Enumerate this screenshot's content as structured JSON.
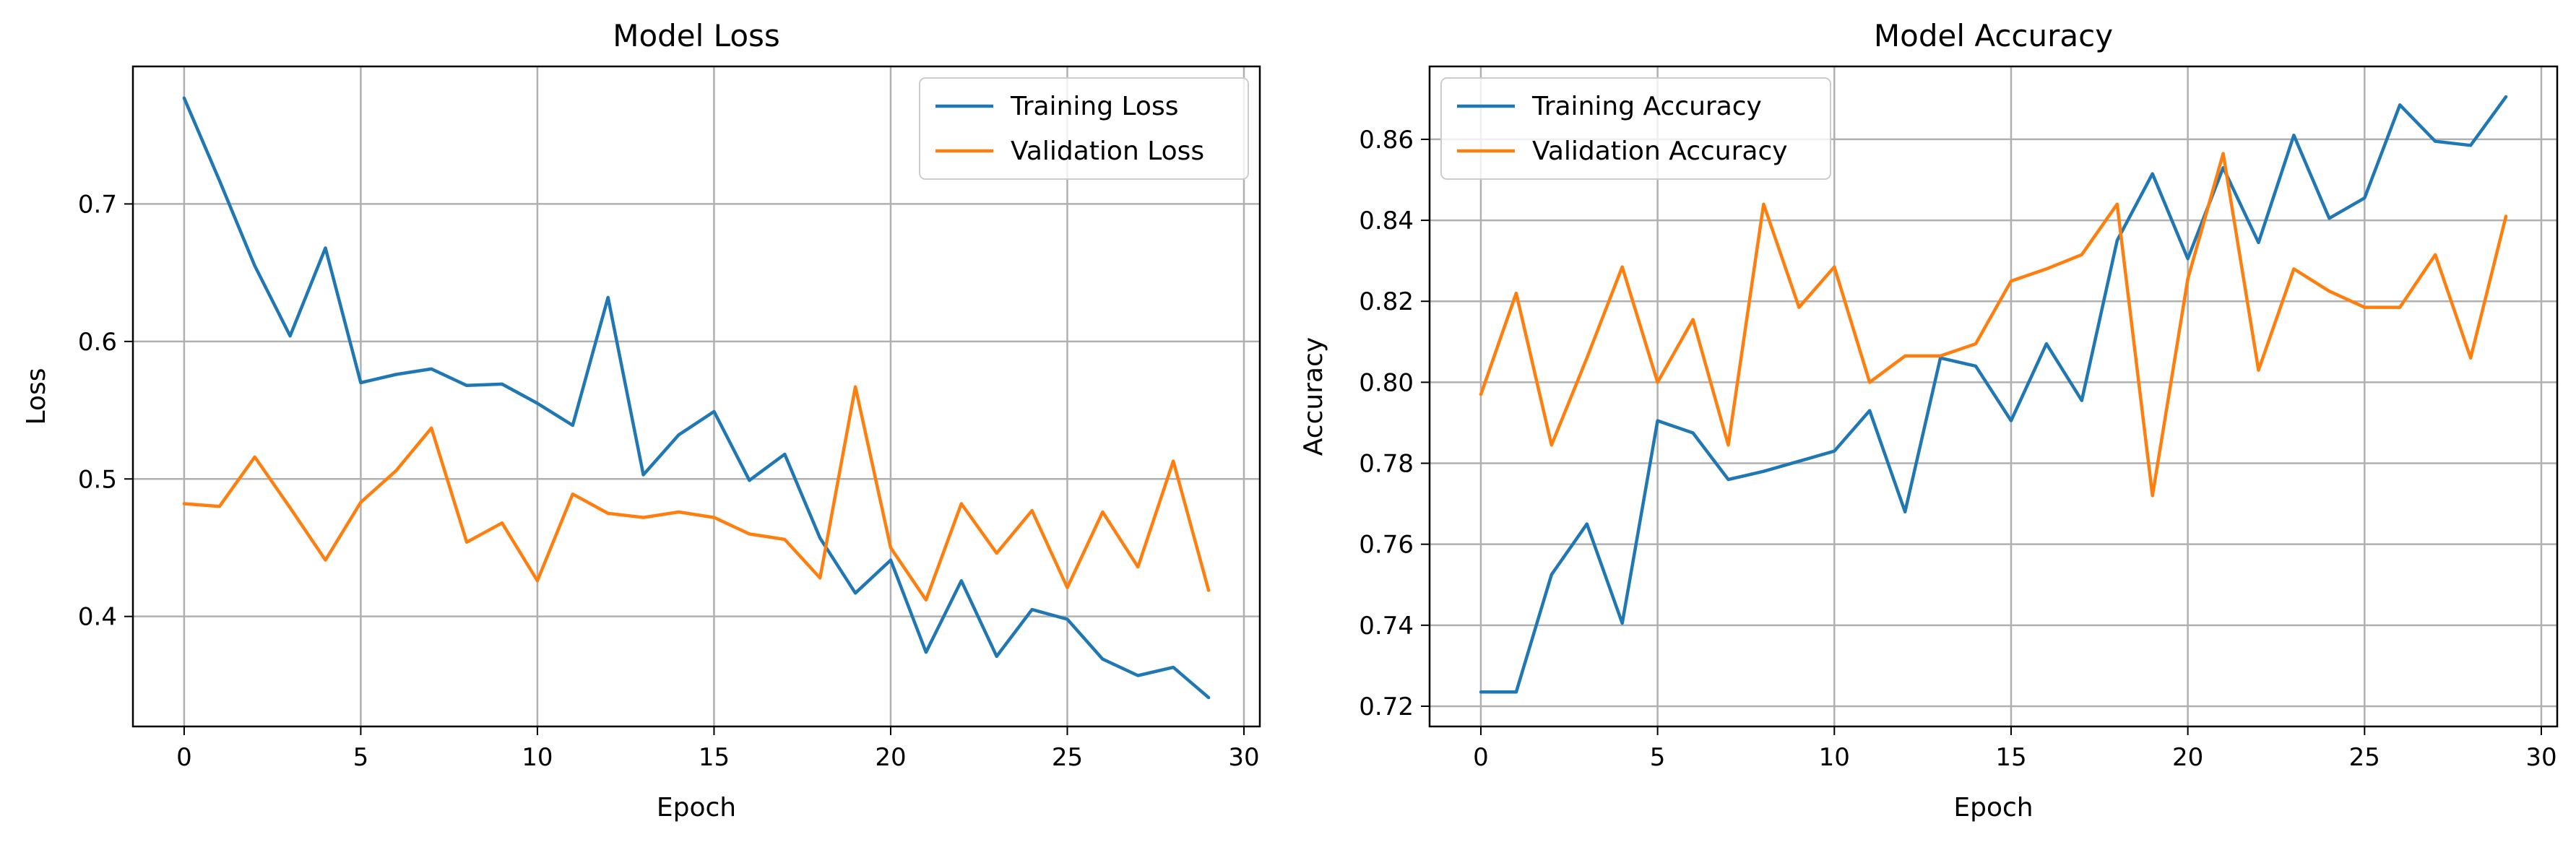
{
  "chart_data": [
    {
      "type": "line",
      "title": "Model Loss",
      "xlabel": "Epoch",
      "ylabel": "Loss",
      "xlim": [
        -1.45,
        30.45
      ],
      "ylim": [
        0.32,
        0.8
      ],
      "xticks": [
        0,
        5,
        10,
        15,
        20,
        25,
        30
      ],
      "yticks": [
        0.4,
        0.5,
        0.6,
        0.7
      ],
      "ytick_labels": [
        "0.4",
        "0.5",
        "0.6",
        "0.7"
      ],
      "grid": true,
      "legend_position": "top-right",
      "x": [
        0,
        1,
        2,
        3,
        4,
        5,
        6,
        7,
        8,
        9,
        10,
        11,
        12,
        13,
        14,
        15,
        16,
        17,
        18,
        19,
        20,
        21,
        22,
        23,
        24,
        25,
        26,
        27,
        28,
        29
      ],
      "series": [
        {
          "name": "Training Loss",
          "color": "#1f77b4",
          "values": [
            0.777,
            0.717,
            0.655,
            0.604,
            0.668,
            0.57,
            0.576,
            0.58,
            0.568,
            0.569,
            0.555,
            0.539,
            0.632,
            0.503,
            0.532,
            0.549,
            0.499,
            0.518,
            0.457,
            0.417,
            0.441,
            0.374,
            0.426,
            0.371,
            0.405,
            0.398,
            0.369,
            0.357,
            0.363,
            0.341
          ]
        },
        {
          "name": "Validation Loss",
          "color": "#ff7f0e",
          "values": [
            0.482,
            0.48,
            0.516,
            0.479,
            0.441,
            0.483,
            0.506,
            0.537,
            0.454,
            0.468,
            0.426,
            0.489,
            0.475,
            0.472,
            0.476,
            0.472,
            0.46,
            0.456,
            0.428,
            0.567,
            0.45,
            0.412,
            0.482,
            0.446,
            0.477,
            0.421,
            0.476,
            0.436,
            0.513,
            0.419
          ]
        }
      ]
    },
    {
      "type": "line",
      "title": "Model Accuracy",
      "xlabel": "Epoch",
      "ylabel": "Accuracy",
      "xlim": [
        -1.45,
        30.45
      ],
      "ylim": [
        0.715,
        0.878
      ],
      "xticks": [
        0,
        5,
        10,
        15,
        20,
        25,
        30
      ],
      "yticks": [
        0.72,
        0.74,
        0.76,
        0.78,
        0.8,
        0.82,
        0.84,
        0.86
      ],
      "ytick_labels": [
        "0.72",
        "0.74",
        "0.76",
        "0.78",
        "0.80",
        "0.82",
        "0.84",
        "0.86"
      ],
      "grid": true,
      "legend_position": "top-left",
      "x": [
        0,
        1,
        2,
        3,
        4,
        5,
        6,
        7,
        8,
        9,
        10,
        11,
        12,
        13,
        14,
        15,
        16,
        17,
        18,
        19,
        20,
        21,
        22,
        23,
        24,
        25,
        26,
        27,
        28,
        29
      ],
      "series": [
        {
          "name": "Training Accuracy",
          "color": "#1f77b4",
          "values": [
            0.7235,
            0.7235,
            0.7525,
            0.765,
            0.7405,
            0.7905,
            0.7875,
            0.776,
            0.778,
            0.7805,
            0.783,
            0.793,
            0.768,
            0.806,
            0.804,
            0.7905,
            0.8095,
            0.7955,
            0.835,
            0.8515,
            0.8305,
            0.853,
            0.8345,
            0.861,
            0.8405,
            0.8455,
            0.8685,
            0.8595,
            0.8585,
            0.8705
          ]
        },
        {
          "name": "Validation Accuracy",
          "color": "#ff7f0e",
          "values": [
            0.797,
            0.822,
            0.7845,
            0.806,
            0.8285,
            0.8,
            0.8155,
            0.7845,
            0.844,
            0.8185,
            0.8285,
            0.8,
            0.8065,
            0.8065,
            0.8095,
            0.825,
            0.828,
            0.8315,
            0.844,
            0.772,
            0.8255,
            0.8565,
            0.803,
            0.828,
            0.8225,
            0.8185,
            0.8185,
            0.8315,
            0.806,
            0.841
          ]
        }
      ]
    }
  ]
}
